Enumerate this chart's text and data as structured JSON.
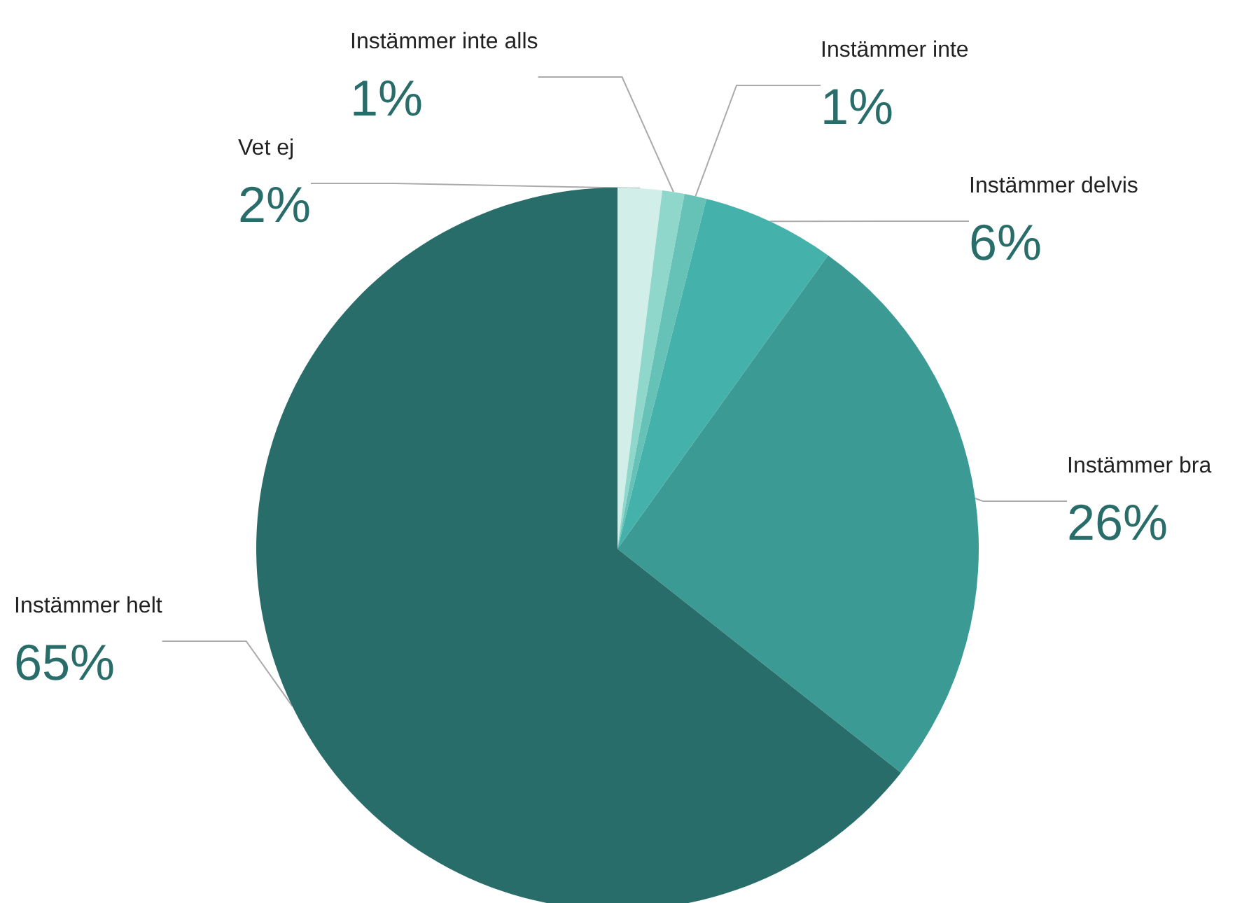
{
  "chart_data": {
    "type": "pie",
    "categories": [
      "Vet ej",
      "Instämmer inte alls",
      "Instämmer inte",
      "Instämmer delvis",
      "Instämmer bra",
      "Instämmer helt"
    ],
    "values": [
      2,
      1,
      1,
      6,
      26,
      65
    ],
    "value_labels": [
      "2%",
      "1%",
      "1%",
      "6%",
      "26%",
      "65%"
    ],
    "colors": [
      "#d2eee9",
      "#8fd6cb",
      "#66c2b6",
      "#45b1ab",
      "#3c9a95",
      "#286d69"
    ],
    "legend": false
  }
}
